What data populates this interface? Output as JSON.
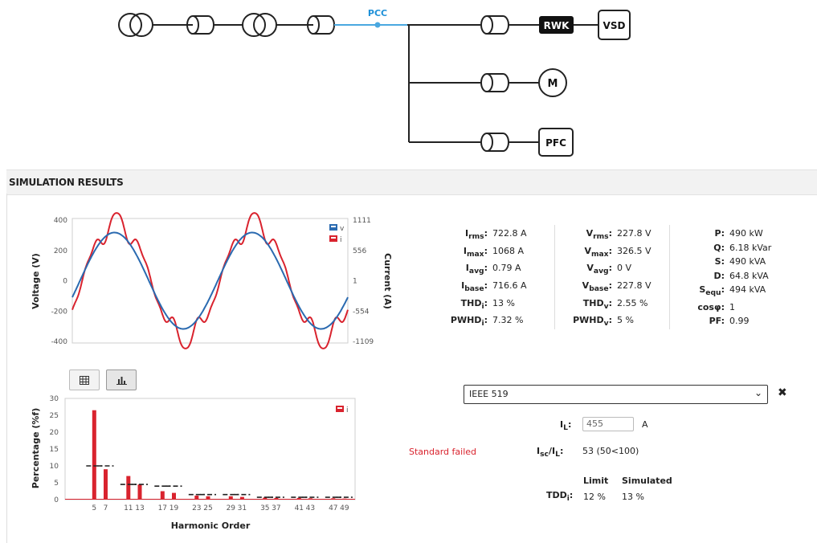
{
  "diagram": {
    "pcc_label": "PCC",
    "rwk_label": "RWK",
    "vsd_label": "VSD",
    "motor_label": "M",
    "pfc_label": "PFC"
  },
  "results_header": "SIMULATION RESULTS",
  "waveform_chart": {
    "type": "line",
    "ylabel_left": "Voltage (V)",
    "ylabel_right": "Current (A)",
    "left_ticks": [
      "400",
      "200",
      "0",
      "-200",
      "-400"
    ],
    "right_ticks": [
      "1111",
      "556",
      "1",
      "-554",
      "-1109"
    ],
    "ylim_left": [
      -400,
      400
    ],
    "ylim_right": [
      -1109,
      1111
    ],
    "legend": [
      "v",
      "i"
    ],
    "legend_position": "top-right",
    "colors": {
      "v": "#2a6ab0",
      "i": "#d9232e"
    },
    "cycles": 2,
    "v_amplitude": 326.5,
    "i_amplitude": 1068
  },
  "harmonic_chart": {
    "type": "bar",
    "ylabel": "Percentage (%f)",
    "xlabel": "Harmonic Order",
    "y_ticks": [
      "30",
      "25",
      "20",
      "15",
      "10",
      "5",
      "0"
    ],
    "ylim": [
      0,
      30
    ],
    "x_tick_labels": [
      "5",
      "7",
      "11",
      "13",
      "17",
      "19",
      "23",
      "25",
      "29",
      "31",
      "35",
      "37",
      "41",
      "43",
      "47",
      "49"
    ],
    "legend": [
      "i"
    ],
    "legend_position": "top-right",
    "bar_color": "#d9232e",
    "limit_color": "#222222",
    "orders": [
      5,
      7,
      11,
      13,
      17,
      19,
      23,
      25,
      29,
      31,
      35,
      37,
      41,
      43,
      47,
      49
    ],
    "values": [
      26.5,
      9,
      7,
      4.5,
      2.5,
      2,
      1.2,
      1,
      1,
      0.8,
      0.6,
      0.5,
      0.5,
      0.4,
      0.4,
      0.3
    ],
    "limits": [
      10,
      10,
      4.5,
      4.5,
      4,
      4,
      1.5,
      1.5,
      1.5,
      1.5,
      0.7,
      0.7,
      0.7,
      0.7,
      0.7,
      0.7
    ]
  },
  "tabs": {
    "table_icon": "table-icon",
    "chart_icon": "bar-chart-icon"
  },
  "stats_current": [
    {
      "label": "I",
      "sub": "rms",
      "value": "722.8 A"
    },
    {
      "label": "I",
      "sub": "max",
      "value": "1068 A"
    },
    {
      "label": "I",
      "sub": "avg",
      "value": "0.79 A"
    },
    {
      "label": "I",
      "sub": "base",
      "value": "716.6 A"
    },
    {
      "label": "THD",
      "sub": "i",
      "value": "13 %"
    },
    {
      "label": "PWHD",
      "sub": "i",
      "value": "7.32 %"
    }
  ],
  "stats_voltage": [
    {
      "label": "V",
      "sub": "rms",
      "value": "227.8 V"
    },
    {
      "label": "V",
      "sub": "max",
      "value": "326.5 V"
    },
    {
      "label": "V",
      "sub": "avg",
      "value": "0 V"
    },
    {
      "label": "V",
      "sub": "base",
      "value": "227.8 V"
    },
    {
      "label": "THD",
      "sub": "v",
      "value": "2.55 %"
    },
    {
      "label": "PWHD",
      "sub": "v",
      "value": "5 %"
    }
  ],
  "stats_power": [
    {
      "label": "P",
      "sub": "",
      "value": "490 kW"
    },
    {
      "label": "Q",
      "sub": "",
      "value": "6.18 kVar"
    },
    {
      "label": "S",
      "sub": "",
      "value": "490 kVA"
    },
    {
      "label": "D",
      "sub": "",
      "value": "64.8 kVA"
    },
    {
      "label": "S",
      "sub": "equ",
      "value": "494 kVA"
    },
    {
      "label": "cosφ",
      "sub": "",
      "value": "1"
    },
    {
      "label": "PF",
      "sub": "",
      "value": "0.99"
    }
  ],
  "standard": {
    "selected": "IEEE 519",
    "status": "Standard failed",
    "il_label": "I",
    "il_sub": "L",
    "il_value": "455",
    "il_unit": "A",
    "isc_label": "I",
    "isc_sub": "sc",
    "isc_mid": "/I",
    "isc_sub2": "L",
    "isc_value": "53 (50<100)",
    "col_limit": "Limit",
    "col_simulated": "Simulated",
    "tdd_label": "TDD",
    "tdd_sub": "i",
    "tdd_limit": "12 %",
    "tdd_simulated": "13 %"
  }
}
